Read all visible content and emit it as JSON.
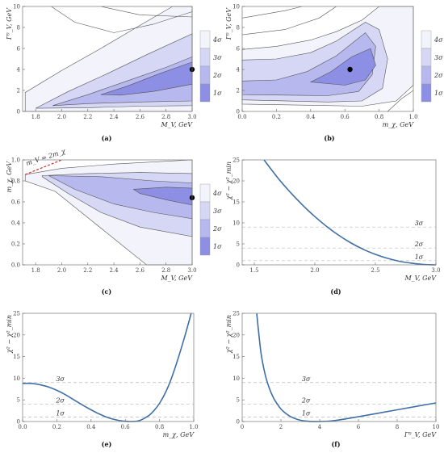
{
  "chart_data": [
    {
      "id": "a",
      "type": "contour",
      "panel_label": "(a)",
      "xlabel": "M_V, GeV",
      "ylabel": "Γ⁰_V, GeV",
      "xlim": [
        1.7,
        3.0
      ],
      "ylim": [
        0,
        10
      ],
      "xticks": [
        "1.8",
        "2.0",
        "2.2",
        "2.4",
        "2.6",
        "2.8",
        "3.0"
      ],
      "yticks": [
        "0",
        "2",
        "4",
        "6",
        "8",
        "10"
      ],
      "legend": [
        "4σ",
        "3σ",
        "2σ",
        "1σ"
      ],
      "best_fit": {
        "x": 3.0,
        "y": 4.0
      }
    },
    {
      "id": "b",
      "type": "contour",
      "panel_label": "(b)",
      "xlabel": "m_χ, GeV",
      "ylabel": "Γ⁰_V, GeV",
      "xlim": [
        0,
        1.0
      ],
      "ylim": [
        0,
        10
      ],
      "xticks": [
        "0.0",
        "0.2",
        "0.4",
        "0.6",
        "0.8",
        "1.0"
      ],
      "yticks": [
        "0",
        "2",
        "4",
        "6",
        "8",
        "10"
      ],
      "legend": [
        "4σ",
        "3σ",
        "2σ",
        "1σ"
      ],
      "best_fit": {
        "x": 0.63,
        "y": 4.0
      }
    },
    {
      "id": "c",
      "type": "contour",
      "panel_label": "(c)",
      "xlabel": "M_V, GeV",
      "ylabel": "m_χ, GeV",
      "xlim": [
        1.7,
        3.0
      ],
      "ylim": [
        0,
        1.0
      ],
      "xticks": [
        "1.8",
        "2.0",
        "2.2",
        "2.4",
        "2.6",
        "2.8",
        "3.0"
      ],
      "yticks": [
        "0.0",
        "0.2",
        "0.4",
        "0.6",
        "0.8",
        "1.0"
      ],
      "legend": [
        "4σ",
        "3σ",
        "2σ",
        "1σ"
      ],
      "annotation": "m_V = 2m_χ",
      "best_fit": {
        "x": 3.0,
        "y": 0.64
      }
    },
    {
      "id": "d",
      "type": "line",
      "panel_label": "(d)",
      "xlabel": "M_V, GeV",
      "ylabel": "χ² − χ²_min",
      "xlim": [
        1.4,
        3.0
      ],
      "ylim": [
        0,
        25
      ],
      "xticks": [
        "1.5",
        "2.0",
        "2.5",
        "3.0"
      ],
      "yticks": [
        "0",
        "5",
        "10",
        "15",
        "20",
        "25"
      ],
      "sigma_lines": [
        {
          "label": "1σ",
          "y": 1
        },
        {
          "label": "2σ",
          "y": 4
        },
        {
          "label": "3σ",
          "y": 9
        }
      ],
      "x": [
        1.58,
        1.7,
        1.8,
        1.9,
        2.0,
        2.1,
        2.2,
        2.3,
        2.4,
        2.5,
        2.6,
        2.7,
        2.8,
        2.9,
        3.0
      ],
      "y": [
        25,
        20.5,
        17.2,
        14.2,
        11.5,
        9.1,
        7.0,
        5.2,
        3.7,
        2.5,
        1.55,
        0.85,
        0.4,
        0.1,
        0
      ]
    },
    {
      "id": "e",
      "type": "line",
      "panel_label": "(e)",
      "xlabel": "m_χ, GeV",
      "ylabel": "χ² − χ²_min",
      "xlim": [
        0,
        1.0
      ],
      "ylim": [
        0,
        25
      ],
      "xticks": [
        "0.0",
        "0.2",
        "0.4",
        "0.6",
        "0.8",
        "1.0"
      ],
      "yticks": [
        "0",
        "5",
        "10",
        "15",
        "20",
        "25"
      ],
      "sigma_lines": [
        {
          "label": "1σ",
          "y": 1
        },
        {
          "label": "2σ",
          "y": 4
        },
        {
          "label": "3σ",
          "y": 9
        }
      ],
      "x": [
        0.0,
        0.05,
        0.1,
        0.15,
        0.2,
        0.25,
        0.3,
        0.35,
        0.4,
        0.45,
        0.5,
        0.55,
        0.6,
        0.63,
        0.67,
        0.7,
        0.75,
        0.8,
        0.85,
        0.9,
        0.95,
        0.985
      ],
      "y": [
        8.8,
        8.8,
        8.5,
        8.0,
        7.2,
        6.2,
        5.0,
        3.8,
        2.7,
        1.7,
        0.9,
        0.35,
        0.05,
        0.0,
        0.1,
        0.5,
        1.8,
        4.2,
        8.0,
        13.5,
        20.0,
        25
      ]
    },
    {
      "id": "f",
      "type": "line",
      "panel_label": "(f)",
      "xlabel": "Γ⁰_V, GeV",
      "ylabel": "χ² − χ²_min",
      "xlim": [
        0,
        10
      ],
      "ylim": [
        0,
        25
      ],
      "xticks": [
        "0",
        "2",
        "4",
        "6",
        "8",
        "10"
      ],
      "yticks": [
        "0",
        "5",
        "10",
        "15",
        "20",
        "25"
      ],
      "sigma_lines": [
        {
          "label": "1σ",
          "y": 1
        },
        {
          "label": "2σ",
          "y": 4
        },
        {
          "label": "3σ",
          "y": 9
        }
      ],
      "x": [
        0.75,
        0.9,
        1.0,
        1.2,
        1.4,
        1.6,
        1.8,
        2.0,
        2.3,
        2.6,
        3.0,
        3.5,
        4.0,
        4.5,
        5.0,
        6.0,
        7.0,
        8.0,
        9.0,
        10.0
      ],
      "y": [
        25,
        18.5,
        15.0,
        10.6,
        7.7,
        5.6,
        4.1,
        2.9,
        1.7,
        0.9,
        0.3,
        0.02,
        0.0,
        0.1,
        0.35,
        1.1,
        1.9,
        2.7,
        3.5,
        4.3
      ]
    }
  ]
}
